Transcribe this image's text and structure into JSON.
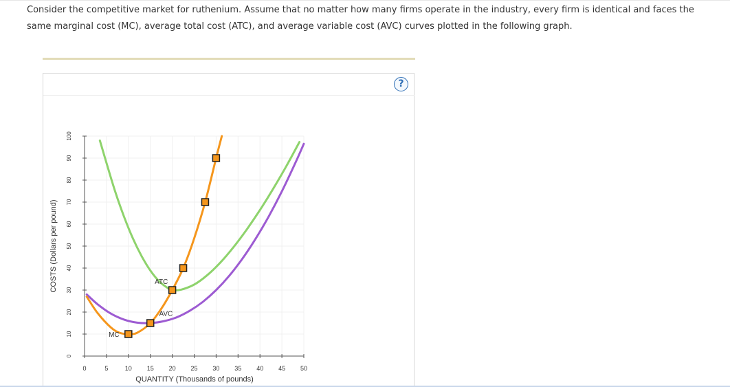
{
  "question": {
    "line1": "Consider the competitive market for ruthenium. Assume that no matter how many firms operate in the industry, every firm is identical and faces the",
    "line2": "same marginal cost (MC), average total cost (ATC), and average variable cost (AVC) curves plotted in the following graph."
  },
  "help_icon": {
    "glyph": "?",
    "icon": "question-mark-icon"
  },
  "chart_data": {
    "type": "line",
    "xlabel": "QUANTITY (Thousands of pounds)",
    "ylabel": "COSTS (Dollars per pound)",
    "xlim": [
      0,
      50
    ],
    "ylim": [
      0,
      100
    ],
    "xticks": [
      0,
      5,
      10,
      15,
      20,
      25,
      30,
      35,
      40,
      45,
      50
    ],
    "yticks": [
      0,
      10,
      20,
      30,
      40,
      50,
      60,
      70,
      80,
      90,
      100
    ],
    "grid": true,
    "series": [
      {
        "name": "ATC",
        "color": "#8ed36c",
        "x": [
          3.5,
          5,
          7,
          9,
          11,
          13,
          15,
          17,
          19,
          20,
          22,
          25,
          28,
          31,
          34,
          37,
          40,
          43,
          46,
          49
        ],
        "y": [
          98,
          87.8,
          74.7,
          63.4,
          53.6,
          45.5,
          38.9,
          34,
          30.9,
          30,
          30.2,
          32.5,
          36.8,
          42.6,
          49.6,
          57.6,
          66.4,
          76,
          86.3,
          97.3
        ]
      },
      {
        "name": "AVC",
        "color": "#9d5bd2",
        "x": [
          0.5,
          3,
          6,
          9,
          12,
          15,
          18,
          21,
          24,
          27,
          30,
          33,
          36,
          39,
          42,
          45,
          48,
          50
        ],
        "y": [
          28,
          23.5,
          19.3,
          16.6,
          15.2,
          15,
          15.8,
          17.6,
          20.6,
          24.7,
          30,
          36.5,
          44.3,
          53.3,
          63.5,
          74.9,
          87.5,
          96.5
        ]
      },
      {
        "name": "MC",
        "color": "#f5961c",
        "x": [
          0.5,
          3,
          6,
          8,
          10,
          12,
          15,
          17.5,
          20,
          22.5,
          25,
          27.5,
          30,
          31.3
        ],
        "y": [
          27,
          19.5,
          13,
          10.6,
          10,
          10.6,
          15,
          21.5,
          30,
          40,
          53.5,
          70,
          90,
          100
        ]
      }
    ],
    "points": [
      {
        "x": 10,
        "y": 10
      },
      {
        "x": 15,
        "y": 15
      },
      {
        "x": 20,
        "y": 30
      },
      {
        "x": 22.5,
        "y": 40
      },
      {
        "x": 27.5,
        "y": 70
      },
      {
        "x": 30,
        "y": 90
      }
    ],
    "curve_labels": [
      {
        "text": "ATC",
        "x": 16,
        "y": 34
      },
      {
        "text": "AVC",
        "x": 17,
        "y": 19.5
      },
      {
        "text": "MC",
        "x": 5.5,
        "y": 10
      }
    ]
  }
}
